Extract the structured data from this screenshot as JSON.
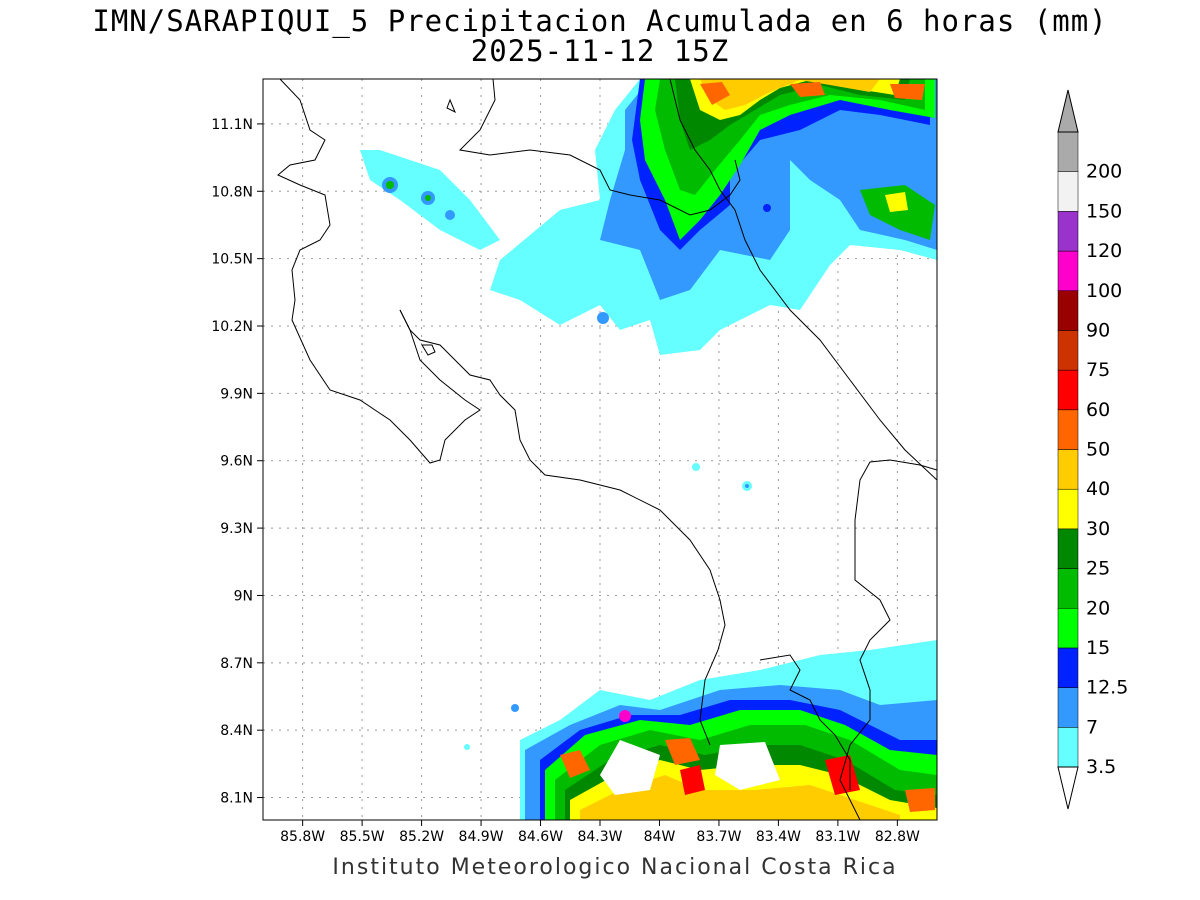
{
  "title": {
    "line1": "IMN/SARAPIQUI_5 Precipitacion Acumulada en 6 horas (mm)",
    "line2": "2025-11-12 15Z"
  },
  "footer": "Instituto Meteorologico Nacional Costa Rica",
  "map": {
    "lon_range": [
      -86.0,
      -82.6
    ],
    "lat_range": [
      8.0,
      11.3
    ],
    "lat_ticks": [
      {
        "value": 11.1,
        "label": "11.1N"
      },
      {
        "value": 10.8,
        "label": "10.8N"
      },
      {
        "value": 10.5,
        "label": "10.5N"
      },
      {
        "value": 10.2,
        "label": "10.2N"
      },
      {
        "value": 9.9,
        "label": "9.9N"
      },
      {
        "value": 9.6,
        "label": "9.6N"
      },
      {
        "value": 9.3,
        "label": "9.3N"
      },
      {
        "value": 9.0,
        "label": "9N"
      },
      {
        "value": 8.7,
        "label": "8.7N"
      },
      {
        "value": 8.4,
        "label": "8.4N"
      },
      {
        "value": 8.1,
        "label": "8.1N"
      }
    ],
    "lon_ticks": [
      {
        "value": -85.8,
        "label": "85.8W"
      },
      {
        "value": -85.5,
        "label": "85.5W"
      },
      {
        "value": -85.2,
        "label": "85.2W"
      },
      {
        "value": -84.9,
        "label": "84.9W"
      },
      {
        "value": -84.6,
        "label": "84.6W"
      },
      {
        "value": -84.3,
        "label": "84.3W"
      },
      {
        "value": -84.0,
        "label": "84W"
      },
      {
        "value": -83.7,
        "label": "83.7W"
      },
      {
        "value": -83.4,
        "label": "83.4W"
      },
      {
        "value": -83.1,
        "label": "83.1W"
      },
      {
        "value": -82.8,
        "label": "82.8W"
      }
    ],
    "grid": "dotted"
  },
  "legend": {
    "colorbar": [
      {
        "label": "3.5",
        "color": "#66ffff"
      },
      {
        "label": "7",
        "color": "#3399ff"
      },
      {
        "label": "12.5",
        "color": "#0022ff"
      },
      {
        "label": "15",
        "color": "#00ff00"
      },
      {
        "label": "20",
        "color": "#00bb00"
      },
      {
        "label": "25",
        "color": "#008800"
      },
      {
        "label": "30",
        "color": "#ffff00"
      },
      {
        "label": "40",
        "color": "#ffcc00"
      },
      {
        "label": "50",
        "color": "#ff6600"
      },
      {
        "label": "60",
        "color": "#ff0000"
      },
      {
        "label": "75",
        "color": "#cc3300"
      },
      {
        "label": "90",
        "color": "#990000"
      },
      {
        "label": "100",
        "color": "#ff00cc"
      },
      {
        "label": "120",
        "color": "#9933cc"
      },
      {
        "label": "150",
        "color": "#f2f2f2"
      },
      {
        "label": "200",
        "color": "#aaaaaa"
      }
    ],
    "over_arrow_color": "#aaaaaa",
    "under_arrow_color": "#ffffff"
  }
}
